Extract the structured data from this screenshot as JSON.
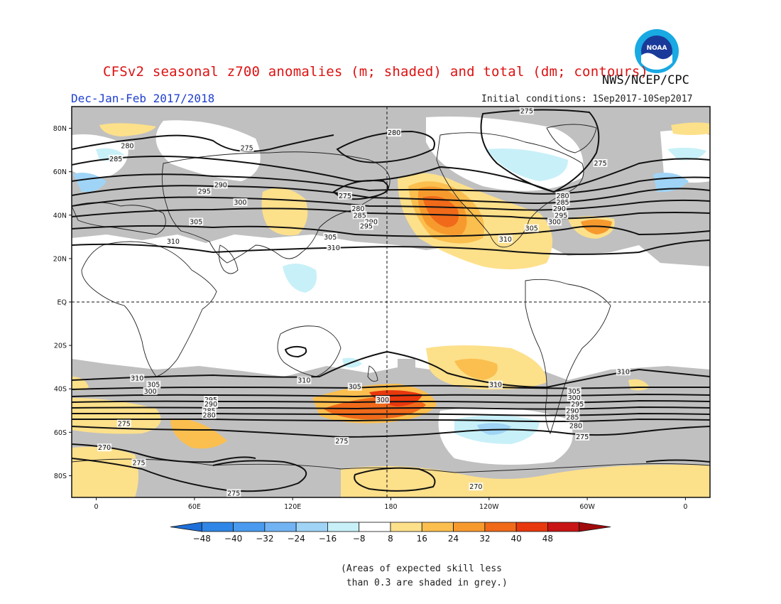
{
  "title": "CFSv2 seasonal z700 anomalies (m; shaded) and total (dm; contours)",
  "agency": "NWS/NCEP/CPC",
  "season": "Dec-Jan-Feb 2017/2018",
  "initial_conditions": "Initial conditions: 1Sep2017-10Sep2017",
  "footnote": "(Areas of expected skill less\n than 0.3 are shaded in grey.)",
  "logo_text": "NOAA",
  "lat_labels": [
    "80N",
    "60N",
    "40N",
    "20N",
    "EQ",
    "20S",
    "40S",
    "60S",
    "80S"
  ],
  "lon_labels": [
    "0",
    "60E",
    "120E",
    "180",
    "120W",
    "60W",
    "0"
  ],
  "colorbar": {
    "ticks": [
      "-48",
      "-40",
      "-32",
      "-24",
      "-16",
      "-8",
      "8",
      "16",
      "24",
      "32",
      "40",
      "48"
    ],
    "colors": [
      "#1e6fd9",
      "#2f86e6",
      "#4a9bef",
      "#72b3f3",
      "#9fd4f6",
      "#c8f0f8",
      "#ffffff",
      "#fde08a",
      "#fbbf4f",
      "#f79a2e",
      "#f06a1a",
      "#e8380e",
      "#c81414",
      "#a00a0a"
    ]
  },
  "contour_labels": [
    {
      "text": "275",
      "lat": 88,
      "lon": -97
    },
    {
      "text": "280",
      "lat": 78,
      "lon": -178
    },
    {
      "text": "275",
      "lat": 71,
      "lon": 92
    },
    {
      "text": "275",
      "lat": 64,
      "lon": -52
    },
    {
      "text": "280",
      "lat": 72,
      "lon": 19
    },
    {
      "text": "285",
      "lat": 66,
      "lon": 12
    },
    {
      "text": "290",
      "lat": 54,
      "lon": 76
    },
    {
      "text": "295",
      "lat": 51,
      "lon": 66
    },
    {
      "text": "300",
      "lat": 46,
      "lon": 88
    },
    {
      "text": "305",
      "lat": 37,
      "lon": 61
    },
    {
      "text": "310",
      "lat": 28,
      "lon": 47
    },
    {
      "text": "275",
      "lat": 49,
      "lon": 152
    },
    {
      "text": "280",
      "lat": 43,
      "lon": 160
    },
    {
      "text": "285",
      "lat": 40,
      "lon": 161
    },
    {
      "text": "290",
      "lat": 37,
      "lon": 168
    },
    {
      "text": "295",
      "lat": 35,
      "lon": 165
    },
    {
      "text": "305",
      "lat": 30,
      "lon": 143
    },
    {
      "text": "310",
      "lat": 25,
      "lon": 145
    },
    {
      "text": "280",
      "lat": 49,
      "lon": -75
    },
    {
      "text": "285",
      "lat": 46,
      "lon": -75
    },
    {
      "text": "290",
      "lat": 43,
      "lon": -77
    },
    {
      "text": "295",
      "lat": 40,
      "lon": -76
    },
    {
      "text": "300",
      "lat": 37,
      "lon": -80
    },
    {
      "text": "305",
      "lat": 34,
      "lon": -94
    },
    {
      "text": "310",
      "lat": 29,
      "lon": -110
    },
    {
      "text": "310",
      "lat": -35,
      "lon": 25
    },
    {
      "text": "310",
      "lat": -36,
      "lon": 127
    },
    {
      "text": "310",
      "lat": -38,
      "lon": -116
    },
    {
      "text": "310",
      "lat": -32,
      "lon": -38
    },
    {
      "text": "305",
      "lat": -38,
      "lon": 35
    },
    {
      "text": "300",
      "lat": -41,
      "lon": 33
    },
    {
      "text": "305",
      "lat": -39,
      "lon": 158
    },
    {
      "text": "300",
      "lat": -45,
      "lon": 175
    },
    {
      "text": "295",
      "lat": -45,
      "lon": 70
    },
    {
      "text": "290",
      "lat": -47,
      "lon": 70
    },
    {
      "text": "285",
      "lat": -50,
      "lon": 69
    },
    {
      "text": "280",
      "lat": -52,
      "lon": 69
    },
    {
      "text": "275",
      "lat": -56,
      "lon": 17
    },
    {
      "text": "275",
      "lat": -64,
      "lon": 150
    },
    {
      "text": "270",
      "lat": -67,
      "lon": 5
    },
    {
      "text": "275",
      "lat": -74,
      "lon": 26
    },
    {
      "text": "275",
      "lat": -88,
      "lon": 84
    },
    {
      "text": "270",
      "lat": -85,
      "lon": -128
    },
    {
      "text": "305",
      "lat": -41,
      "lon": -68
    },
    {
      "text": "300",
      "lat": -44,
      "lon": -68
    },
    {
      "text": "295",
      "lat": -47,
      "lon": -66
    },
    {
      "text": "290",
      "lat": -50,
      "lon": -69
    },
    {
      "text": "285",
      "lat": -53,
      "lon": -69
    },
    {
      "text": "280",
      "lat": -57,
      "lon": -67
    },
    {
      "text": "275",
      "lat": -62,
      "lon": -63
    }
  ]
}
